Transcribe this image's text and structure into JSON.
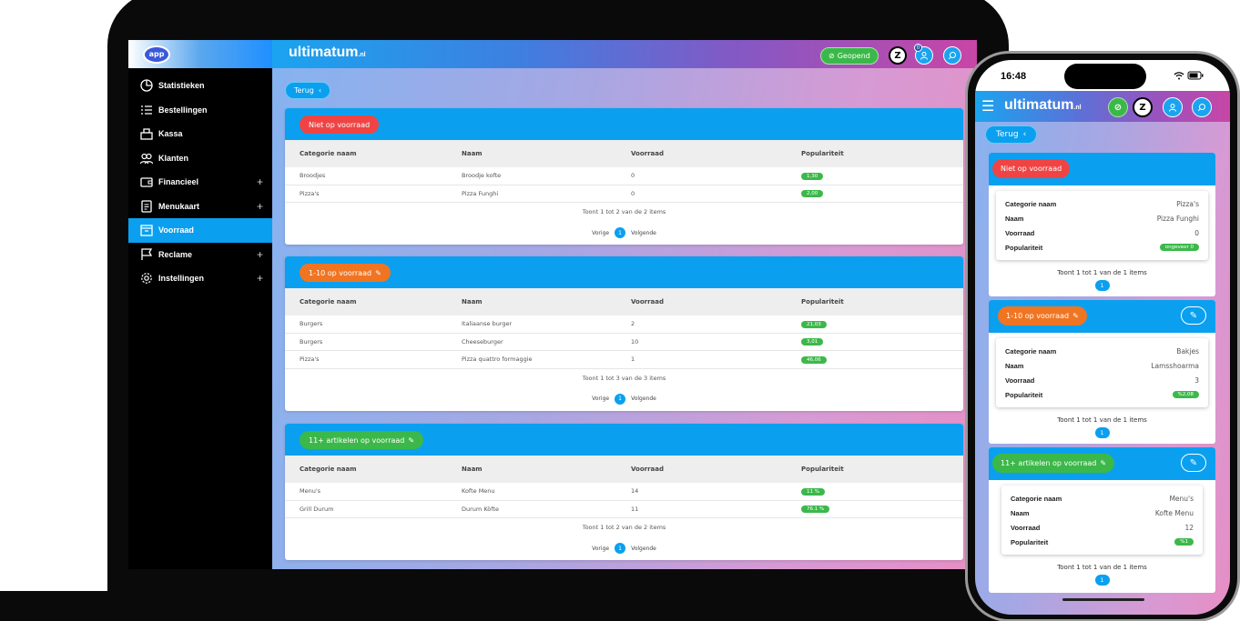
{
  "sidebar": {
    "logo_text": "app",
    "items": [
      {
        "label": "Statistieken",
        "icon": "pie-chart-icon",
        "has_plus": false,
        "active": false
      },
      {
        "label": "Bestellingen",
        "icon": "list-icon",
        "has_plus": false,
        "active": false
      },
      {
        "label": "Kassa",
        "icon": "register-icon",
        "has_plus": false,
        "active": false
      },
      {
        "label": "Klanten",
        "icon": "users-icon",
        "has_plus": false,
        "active": false
      },
      {
        "label": "Financieel",
        "icon": "wallet-icon",
        "has_plus": true,
        "active": false
      },
      {
        "label": "Menukaart",
        "icon": "document-icon",
        "has_plus": true,
        "active": false
      },
      {
        "label": "Voorraad",
        "icon": "box-icon",
        "has_plus": false,
        "active": true
      },
      {
        "label": "Reclame",
        "icon": "flag-icon",
        "has_plus": true,
        "active": false
      },
      {
        "label": "Instellingen",
        "icon": "gear-icon",
        "has_plus": true,
        "active": false
      }
    ],
    "plus_symbol": "+"
  },
  "header": {
    "brand": "ultimatum",
    "brand_suffix": ".nl",
    "status_label": "Geopend",
    "z_label": "Z",
    "badge_count": "0"
  },
  "back_label": "Terug",
  "table_headers": {
    "category": "Categorie naam",
    "name": "Naam",
    "stock": "Voorraad",
    "popularity": "Populariteit"
  },
  "pager": {
    "prev": "Vorige",
    "page": "1",
    "next": "Volgende"
  },
  "sections": [
    {
      "title": "Niet op voorraad",
      "rows": [
        {
          "category": "Broodjes",
          "name": "Broodje kofte",
          "stock": "0",
          "popularity": "1,30"
        },
        {
          "category": "Pizza's",
          "name": "Pizza Funghi",
          "stock": "0",
          "popularity": "2,00"
        }
      ],
      "footer": "Toont 1 tot 2 van de 2 items"
    },
    {
      "title": "1-10 op voorraad",
      "rows": [
        {
          "category": "Burgers",
          "name": "Italiaanse burger",
          "stock": "2",
          "popularity": "21,03"
        },
        {
          "category": "Burgers",
          "name": "Cheeseburger",
          "stock": "10",
          "popularity": "3,01"
        },
        {
          "category": "Pizza's",
          "name": "Pizza quattro formaggie",
          "stock": "1",
          "popularity": "46,06"
        }
      ],
      "footer": "Toont 1 tot 3 van de 3 items"
    },
    {
      "title": "11+ artikelen op voorraad",
      "rows": [
        {
          "category": "Menu's",
          "name": "Kofte Menu",
          "stock": "14",
          "popularity": "11 %"
        },
        {
          "category": "Grill Durum",
          "name": "Durum Köfte",
          "stock": "11",
          "popularity": "76.1 %"
        }
      ],
      "footer": "Toont 1 tot 2 van de 2 items"
    }
  ],
  "phone": {
    "time": "16:48",
    "status_icons": "■",
    "back_label": "Terug",
    "cards": [
      {
        "title": "Niet op voorraad",
        "category": "Pizza's",
        "name": "Pizza Funghi",
        "stock": "0",
        "popularity": "ongeveer 0",
        "footer": "Toont 1 tot 1 van de 1 items"
      },
      {
        "title": "1-10 op voorraad",
        "category": "Bakjes",
        "name": "Lamsshoarma",
        "stock": "3",
        "popularity": "%2,08",
        "footer": "Toont 1 tot 1 van de 1 items"
      },
      {
        "title": "11+ artikelen op voorraad",
        "category": "Menu's",
        "name": "Kofte Menu",
        "stock": "12",
        "popularity": "%1",
        "footer": "Toont 1 tot 1 van de 1 items"
      }
    ],
    "page": "1"
  },
  "colors": {
    "accent": "#0aa0ef",
    "red": "#f04444",
    "orange": "#f07522",
    "green": "#3cb84a"
  }
}
